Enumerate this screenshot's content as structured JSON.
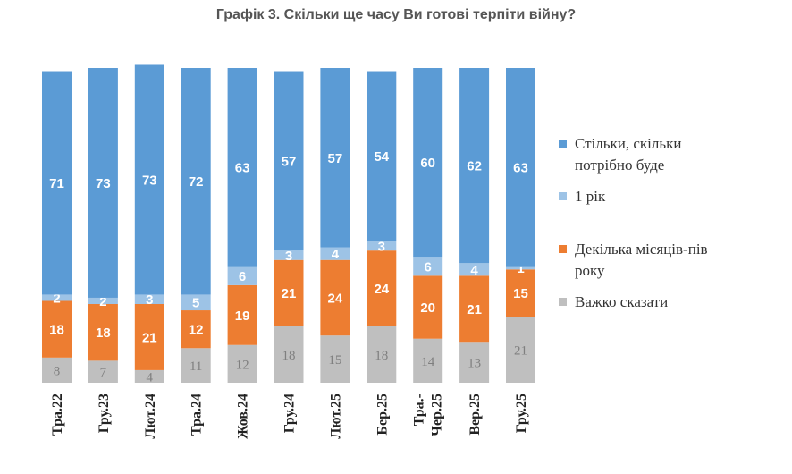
{
  "chart_data": {
    "type": "bar",
    "stacked": true,
    "title": "Графік 3. Скільки ще часу Ви готові терпіти війну?",
    "categories": [
      "Тра.22",
      "Гру.23",
      "Лют.24",
      "Тра.24",
      "Жов.24",
      "Гру.24",
      "Лют.25",
      "Бер.25",
      "Тра.-Чер.25",
      "Вер.25",
      "Гру.25"
    ],
    "series": [
      {
        "name": "Важко сказати",
        "color": "#bfbfbf",
        "label_color": "#7f7f7f",
        "values": [
          8,
          7,
          4,
          11,
          12,
          18,
          15,
          18,
          14,
          13,
          21
        ]
      },
      {
        "name": "Декілька місяців-пів року",
        "color": "#ed7d31",
        "label_color": "#ffffff",
        "values": [
          18,
          18,
          21,
          12,
          19,
          21,
          24,
          24,
          20,
          21,
          15
        ]
      },
      {
        "name": "1 рік",
        "color": "#9dc3e6",
        "label_color": "#ffffff",
        "values": [
          2,
          2,
          3,
          5,
          6,
          3,
          4,
          3,
          6,
          4,
          1
        ]
      },
      {
        "name": "Стільки, скільки потрібно буде",
        "color": "#5b9bd5",
        "label_color": "#ffffff",
        "values": [
          71,
          73,
          73,
          72,
          63,
          57,
          57,
          54,
          60,
          62,
          63
        ]
      }
    ],
    "legend": [
      "Стільки, скільки потрібно буде",
      "1 рік",
      "Декілька місяців-пів року",
      "Важко сказати"
    ],
    "ylim": [
      0,
      100
    ],
    "legend_position": "right"
  }
}
